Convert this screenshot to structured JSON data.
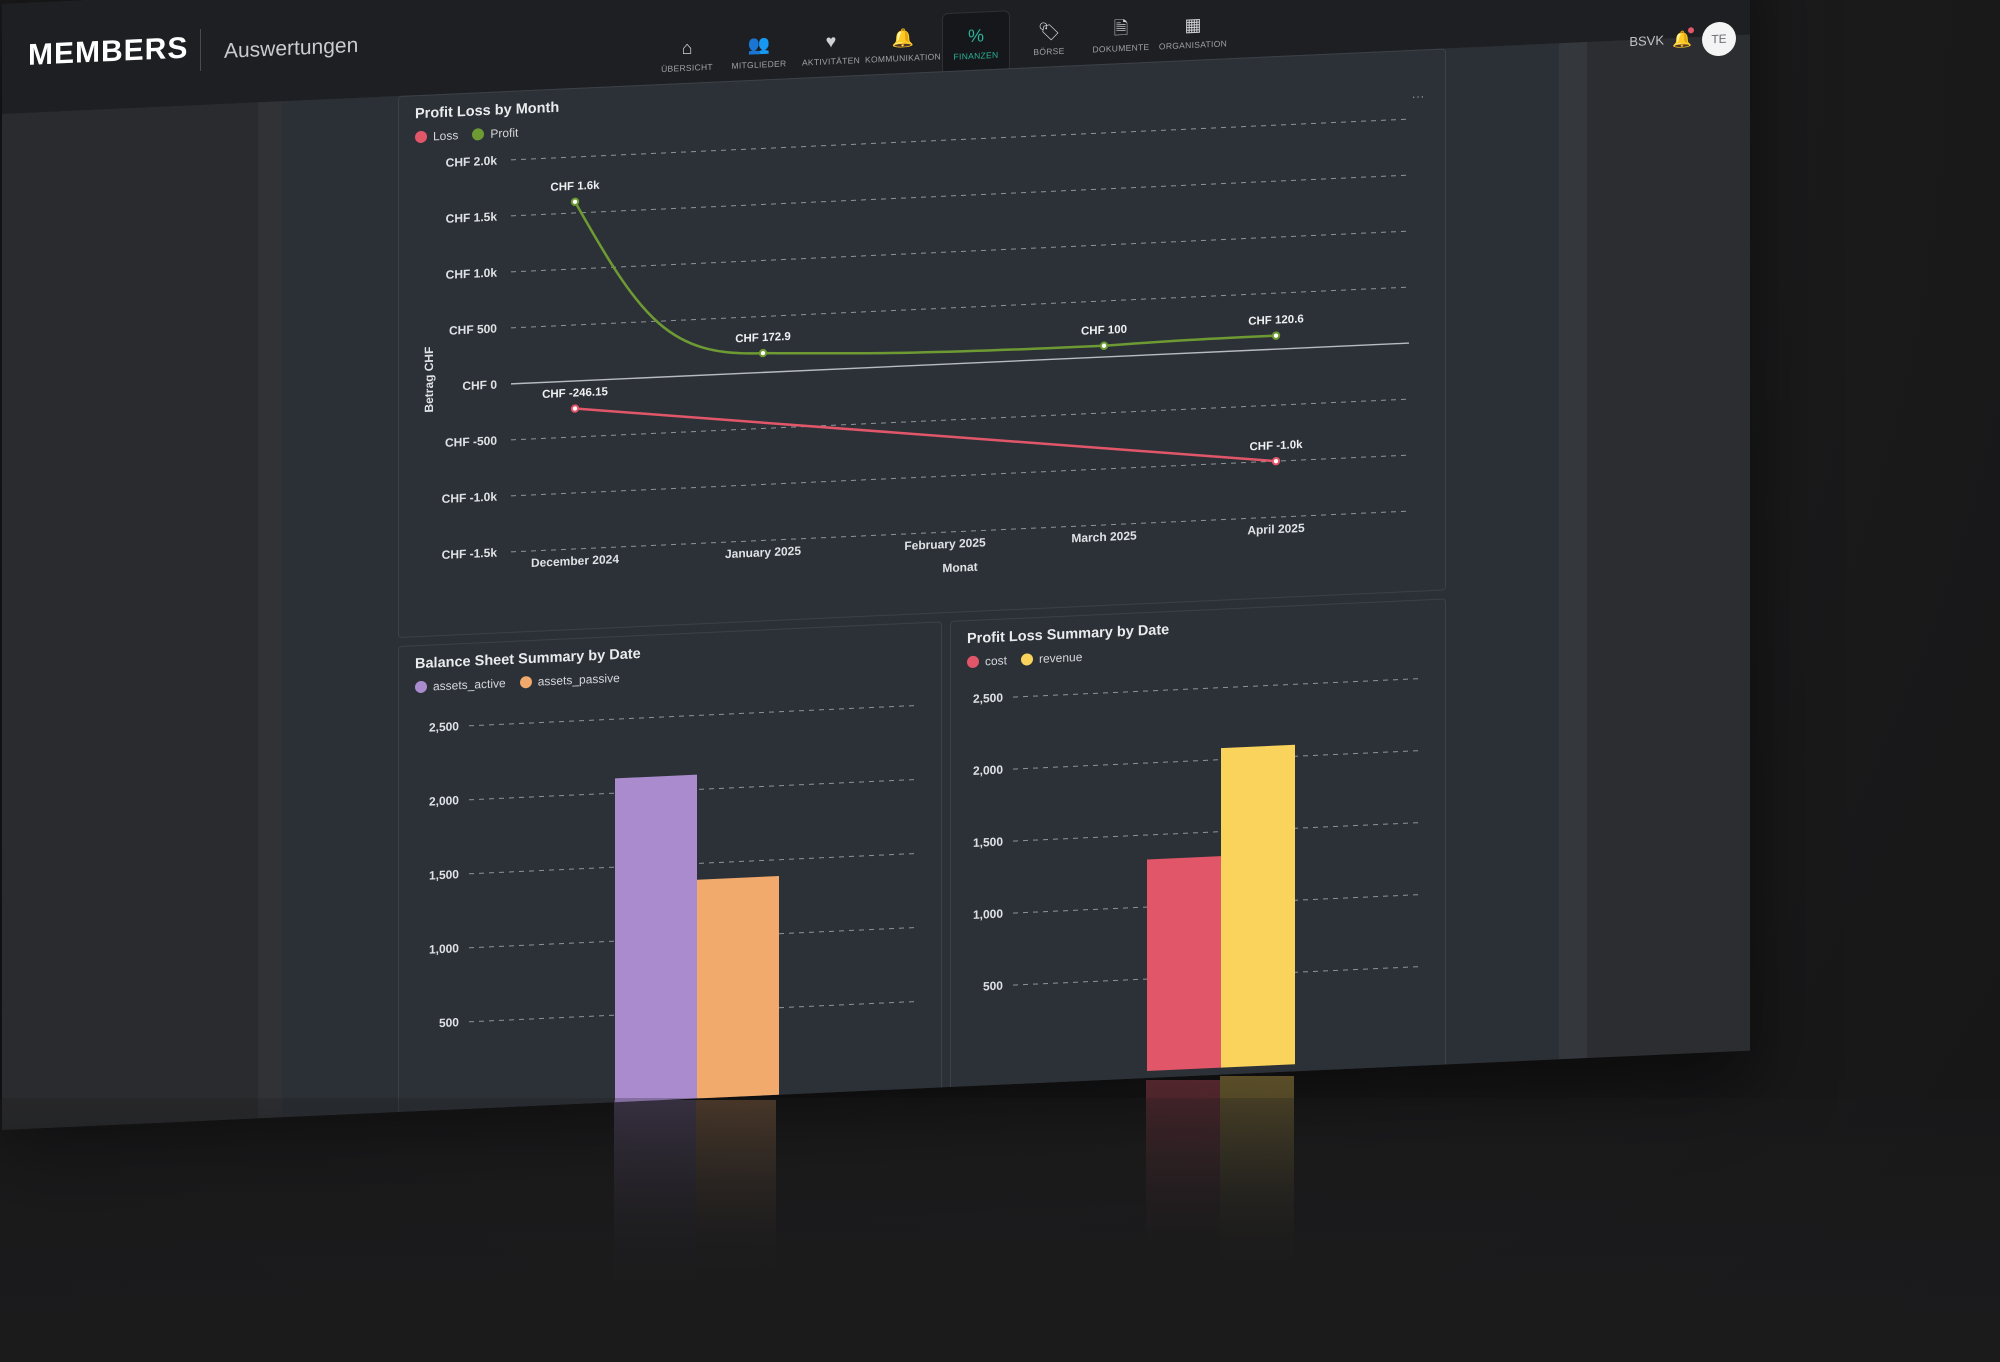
{
  "app": {
    "logo_text": "MEMBERS",
    "page_heading": "Auswertungen",
    "org_label": "BSVK",
    "avatar_initials": "TE"
  },
  "nav": {
    "items": [
      {
        "label": "ÜBERSICHT",
        "icon": "home-icon",
        "glyph": "⌂"
      },
      {
        "label": "MITGLIEDER",
        "icon": "users-icon",
        "glyph": "👥"
      },
      {
        "label": "AKTIVITÄTEN",
        "icon": "heart-pulse-icon",
        "glyph": "♥"
      },
      {
        "label": "KOMMUNIKATION",
        "icon": "bell-icon",
        "glyph": "🔔"
      },
      {
        "label": "FINANZEN",
        "icon": "percent-icon",
        "glyph": "%",
        "active": true
      },
      {
        "label": "BÖRSE",
        "icon": "tag-icon",
        "glyph": "🏷"
      },
      {
        "label": "DOKUMENTE",
        "icon": "document-icon",
        "glyph": "🗎"
      },
      {
        "label": "ORGANISATION",
        "icon": "building-icon",
        "glyph": "▦"
      }
    ]
  },
  "colors": {
    "accent": "#2bb39a",
    "loss": "#e2566a",
    "profit": "#6e9a34",
    "assets_active": "#a98bce",
    "assets_passive": "#f2a96c",
    "cost": "#e2566a",
    "revenue": "#fad35c"
  },
  "chart_data": [
    {
      "type": "line",
      "title": "Profit Loss by Month",
      "xlabel": "Monat",
      "ylabel": "Betrag CHF",
      "menu": "...",
      "categories": [
        "December 2024",
        "January 2025",
        "February 2025",
        "March 2025",
        "April 2025"
      ],
      "yticks": [
        "CHF 2.0k",
        "CHF 1.5k",
        "CHF 1.0k",
        "CHF 500",
        "CHF 0",
        "CHF -500",
        "CHF -1.0k",
        "CHF -1.5k"
      ],
      "ylim": [
        -1500,
        2000
      ],
      "grid": true,
      "legend": "top-left",
      "series": [
        {
          "name": "Loss",
          "color": "#e2566a",
          "points": [
            {
              "x": "December 2024",
              "y": -246.15,
              "label": "CHF -246.15"
            },
            {
              "x": "April 2025",
              "y": -1000,
              "label": "CHF -1.0k"
            }
          ]
        },
        {
          "name": "Profit",
          "color": "#6e9a34",
          "points": [
            {
              "x": "December 2024",
              "y": 1600,
              "label": "CHF 1.6k"
            },
            {
              "x": "January 2025",
              "y": 172.9,
              "label": "CHF 172.9"
            },
            {
              "x": "March 2025",
              "y": 100,
              "label": "CHF 100"
            },
            {
              "x": "April 2025",
              "y": 120.6,
              "label": "CHF 120.6"
            }
          ]
        }
      ]
    },
    {
      "type": "bar",
      "title": "Balance Sheet Summary by Date",
      "yticks": [
        "2,500",
        "2,000",
        "1,500",
        "1,000",
        "500"
      ],
      "ylim": [
        0,
        2500
      ],
      "grid": true,
      "legend": "top-left",
      "categories": [
        ""
      ],
      "series": [
        {
          "name": "assets_active",
          "color": "#a98bce",
          "values": [
            2100
          ]
        },
        {
          "name": "assets_passive",
          "color": "#f2a96c",
          "values": [
            1390
          ]
        }
      ]
    },
    {
      "type": "bar",
      "title": "Profit Loss Summary by Date",
      "yticks": [
        "2,500",
        "2,000",
        "1,500",
        "1,000",
        "500"
      ],
      "ylim": [
        0,
        2500
      ],
      "grid": true,
      "legend": "top-left",
      "categories": [
        ""
      ],
      "series": [
        {
          "name": "cost",
          "color": "#e2566a",
          "values": [
            1330
          ]
        },
        {
          "name": "revenue",
          "color": "#fad35c",
          "values": [
            2080
          ]
        }
      ]
    }
  ]
}
